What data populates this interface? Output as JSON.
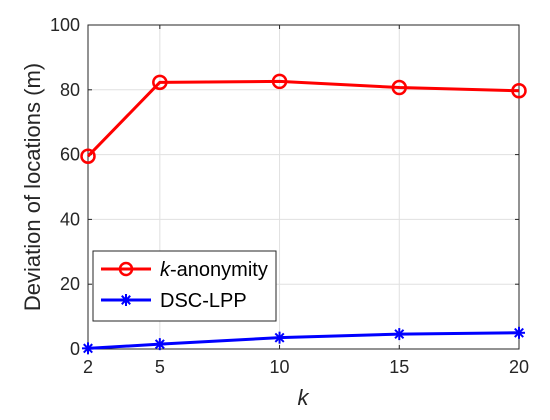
{
  "chart_data": {
    "type": "line",
    "x": [
      2,
      5,
      10,
      15,
      20
    ],
    "xticks": [
      "2",
      "5",
      "10",
      "15",
      "20"
    ],
    "yticks": [
      "0",
      "20",
      "40",
      "60",
      "80",
      "100"
    ],
    "xlim": [
      2,
      20
    ],
    "ylim": [
      0,
      100
    ],
    "xlabel": "k",
    "ylabel": "Deviation of locations (m)",
    "grid": true,
    "legend_position": "lower-left",
    "series": [
      {
        "name": "-anonymity",
        "name_prefix": "k",
        "values": [
          59.5,
          82.3,
          82.6,
          80.7,
          79.7
        ],
        "color": "#ff0000",
        "marker": "circle"
      },
      {
        "name": "DSC-LPP",
        "values": [
          0.2,
          1.5,
          3.5,
          4.6,
          5.0
        ],
        "color": "#0000ff",
        "marker": "asterisk"
      }
    ]
  }
}
